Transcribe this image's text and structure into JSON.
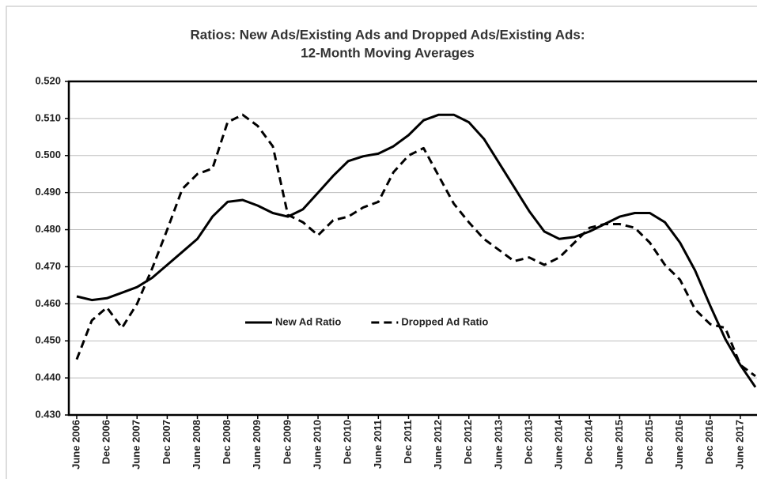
{
  "chart_data": {
    "type": "line",
    "title": [
      "Ratios: New Ads/Existing Ads and Dropped Ads/Existing Ads:",
      "12-Month Moving Averages"
    ],
    "categories": [
      "June 2006",
      null,
      "Dec 2006",
      null,
      "June 2007",
      null,
      "Dec 2007",
      null,
      "June 2008",
      null,
      "Dec 2008",
      null,
      "June 2009",
      null,
      "Dec 2009",
      null,
      "June 2010",
      null,
      "Dec 2010",
      null,
      "June 2011",
      null,
      "Dec 2011",
      null,
      "June 2012",
      null,
      "Dec 2012",
      null,
      "June 2013",
      null,
      "Dec 2013",
      null,
      "June 2014",
      null,
      "Dec 2014",
      null,
      "June 2015",
      null,
      "Dec 2015",
      null,
      "June 2016",
      null,
      "Dec 2016",
      null,
      "June 2017",
      null
    ],
    "series": [
      {
        "name": "New Ad Ratio",
        "color": "#000000",
        "dash": false,
        "values": [
          0.462,
          0.461,
          0.4615,
          0.463,
          0.4645,
          0.467,
          0.4705,
          0.474,
          0.4775,
          0.4835,
          0.4875,
          0.488,
          0.4865,
          0.4845,
          0.4835,
          0.4855,
          0.49,
          0.4945,
          0.4985,
          0.4998,
          0.5005,
          0.5025,
          0.5055,
          0.5095,
          0.511,
          0.511,
          0.509,
          0.5045,
          0.498,
          0.4915,
          0.485,
          0.4795,
          0.4775,
          0.478,
          0.4795,
          0.4815,
          0.4835,
          0.4845,
          0.4845,
          0.482,
          0.4765,
          0.469,
          0.4595,
          0.4505,
          0.4435,
          0.4375
        ]
      },
      {
        "name": "Dropped Ad Ratio",
        "color": "#000000",
        "dash": true,
        "values": [
          0.445,
          0.4555,
          0.459,
          0.4535,
          0.46,
          0.4695,
          0.48,
          0.491,
          0.495,
          0.4965,
          0.509,
          0.511,
          0.508,
          0.5025,
          0.484,
          0.482,
          0.4785,
          0.4825,
          0.4835,
          0.486,
          0.4875,
          0.4955,
          0.5,
          0.502,
          0.4945,
          0.487,
          0.482,
          0.4775,
          0.4745,
          0.4715,
          0.4725,
          0.4705,
          0.4725,
          0.4765,
          0.4805,
          0.4815,
          0.4815,
          0.4805,
          0.4765,
          0.4705,
          0.4665,
          0.4585,
          0.4545,
          0.4535,
          0.4435,
          0.4405
        ]
      }
    ],
    "ylim": [
      0.43,
      0.52
    ],
    "yticks": [
      {
        "value": 0.43,
        "label": "0.430"
      },
      {
        "value": 0.44,
        "label": "0.440"
      },
      {
        "value": 0.45,
        "label": "0.450"
      },
      {
        "value": 0.46,
        "label": "0.460"
      },
      {
        "value": 0.47,
        "label": "0.470"
      },
      {
        "value": 0.48,
        "label": "0.480"
      },
      {
        "value": 0.49,
        "label": "0.490"
      },
      {
        "value": 0.5,
        "label": "0.500"
      },
      {
        "value": 0.51,
        "label": "0.510"
      },
      {
        "value": 0.52,
        "label": "0.520"
      }
    ],
    "grid": true,
    "legend": "center"
  }
}
